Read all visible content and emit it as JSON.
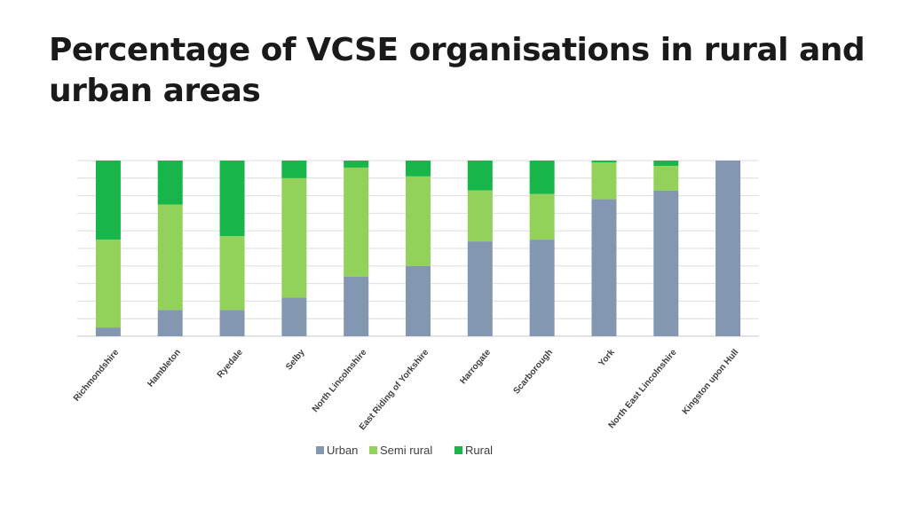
{
  "title": "Percentage of VCSE organisations in rural and urban areas",
  "chart_data": {
    "type": "bar",
    "stacked": true,
    "orientation": "vertical",
    "categories": [
      "Richmondshire",
      "Hambleton",
      "Ryedale",
      "Selby",
      "North Lincolnshire",
      "East Riding of Yorkshire",
      "Harrogate",
      "Scarborough",
      "York",
      "North East Lincolnshire",
      "Kingston upon Hull"
    ],
    "series": [
      {
        "name": "Urban",
        "color": "#8397b0",
        "values": [
          5,
          15,
          15,
          22,
          34,
          40,
          54,
          55,
          78,
          83,
          100
        ]
      },
      {
        "name": "Semi rural",
        "color": "#92d25a",
        "values": [
          50,
          60,
          42,
          68,
          62,
          51,
          29,
          26,
          21,
          14,
          0
        ]
      },
      {
        "name": "Rural",
        "color": "#17b54a",
        "values": [
          45,
          25,
          43,
          10,
          4,
          9,
          17,
          19,
          1,
          3,
          0
        ]
      }
    ],
    "ylim": [
      0,
      100
    ],
    "grid": true,
    "legend_position": "bottom",
    "xlabel": "",
    "ylabel": ""
  }
}
